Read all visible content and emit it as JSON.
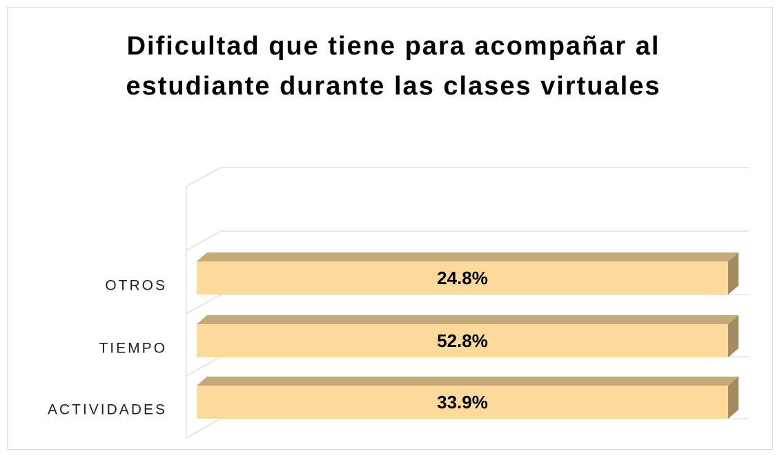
{
  "chart_data": {
    "type": "bar",
    "orientation": "horizontal",
    "stacking": "percent",
    "three_d": true,
    "title": "Dificultad que tiene para acompañar al estudiante durante las clases virtuales",
    "categories": [
      "ACTIVIDADES",
      "TIEMPO",
      "OTROS"
    ],
    "values": [
      33.9,
      52.8,
      24.8
    ],
    "value_labels": [
      "33.9%",
      "52.8%",
      "24.8%"
    ],
    "color": "#fdd99b"
  }
}
